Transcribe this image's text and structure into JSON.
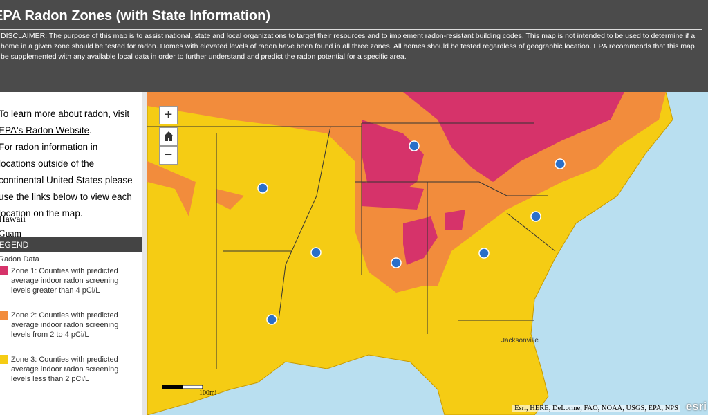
{
  "header": {
    "title": "EPA Radon Zones (with State Information)",
    "disclaimer": "DISCLAIMER: The purpose of this map is to assist national, state and local organizations to target their resources and to implement radon-resistant building codes. This map is not intended to be used to determine if a home in a given zone should be tested for radon. Homes with elevated levels of radon have been found in all three zones. All homes should be tested regardless of geographic location. EPA recommends that this map be supplemented with any available local data in order to further understand and predict the radon potential for a specific area."
  },
  "sidebar": {
    "intro": "To learn more about radon, visit",
    "link": "EPA's Radon Website",
    "intro_end": ".",
    "outside": "For radon information in locations outside of the continental United States please use the links below to view each location on the map.",
    "locations": [
      "Hawaii",
      "Guam"
    ]
  },
  "legend": {
    "title": "LEGEND",
    "layer": "Radon Data",
    "items": [
      {
        "label": "Zone 1: Counties with predicted average indoor radon screening levels greater than 4 pCi/L",
        "color": "#d6336a"
      },
      {
        "label": "Zone 2: Counties with predicted average indoor radon screening levels from 2 to 4 pCi/L",
        "color": "#f28c3c"
      },
      {
        "label": "Zone 3: Counties with predicted average indoor radon screening levels less than 2 pCi/L",
        "color": "#f5cc14"
      }
    ]
  },
  "map": {
    "zoom_in": "+",
    "zoom_out": "−",
    "scale": "100mi",
    "city": "Jacksonville",
    "attribution": "Esri, HERE, DeLorme, FAO, NOAA, USGS, EPA, NPS",
    "logo": "esri"
  }
}
